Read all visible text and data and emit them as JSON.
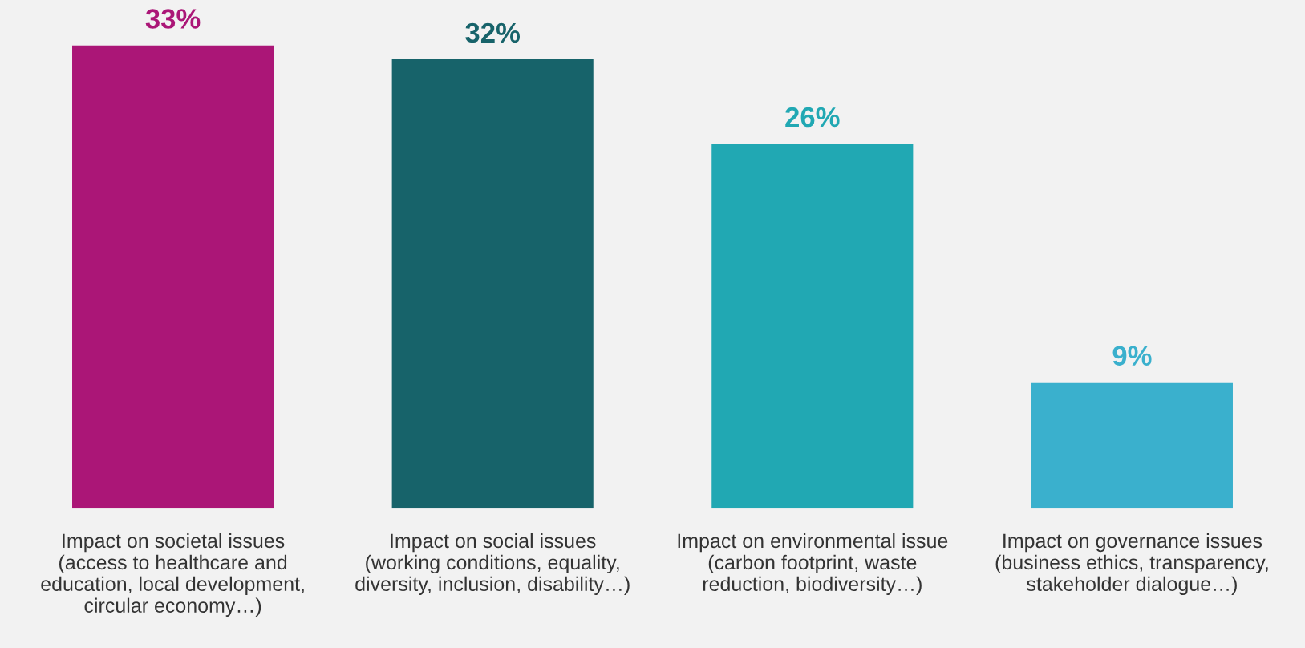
{
  "chart_data": {
    "type": "bar",
    "categories": [
      "Impact on societal issues\n(access to healthcare and\neducation, local development,\ncircular economy…)",
      "Impact on social issues\n(working conditions, equality,\ndiversity, inclusion, disability…)",
      "Impact on environmental issue\n(carbon footprint, waste\nreduction, biodiversity…)",
      "Impact on governance issues\n(business ethics, transparency,\nstakeholder dialogue…)"
    ],
    "values": [
      33,
      32,
      26,
      9
    ],
    "value_labels": [
      "33%",
      "32%",
      "26%",
      "9%"
    ],
    "colors": [
      "#ab1677",
      "#17636a",
      "#21a8b3",
      "#3ab0cd"
    ],
    "grid": false,
    "legend": false
  }
}
